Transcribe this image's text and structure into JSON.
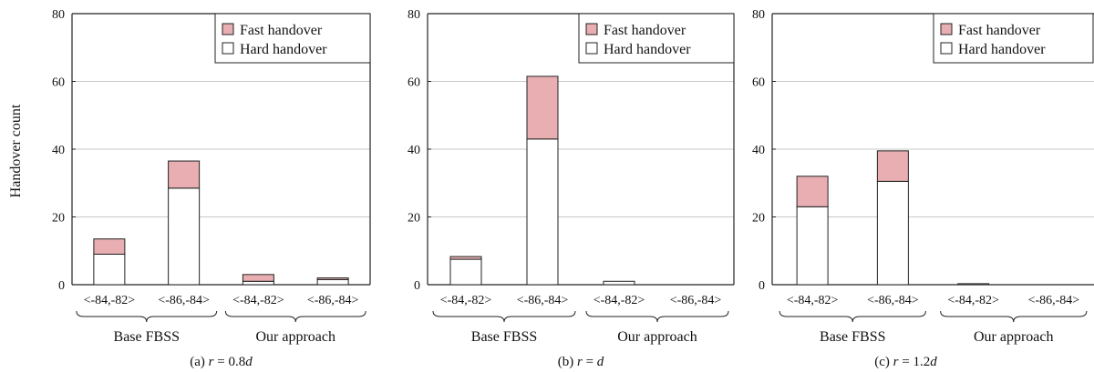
{
  "ylabel": "Handover count",
  "colors": {
    "fast": "#e8aeb1",
    "hard": "#ffffff",
    "grid": "#c8c8c8",
    "axis": "#222222"
  },
  "chart_data": [
    {
      "type": "bar",
      "stacked": true,
      "caption": "(a) r = 0.8d",
      "caption_prefix": "(a) ",
      "caption_var": "r",
      "caption_eq": " = 0.8",
      "caption_tail": "d",
      "ylim": [
        0,
        80
      ],
      "yticks": [
        0,
        20,
        40,
        60,
        80
      ],
      "categories": [
        "<-84,-82>",
        "<-86,-84>",
        "<-84,-82>",
        "<-86,-84>"
      ],
      "groups": [
        {
          "label": "Base FBSS",
          "span": [
            0,
            1
          ]
        },
        {
          "label": "Our approach",
          "span": [
            2,
            3
          ]
        }
      ],
      "legend": {
        "position": "top-right",
        "entries": [
          "Fast handover",
          "Hard handover"
        ]
      },
      "series": [
        {
          "name": "Hard handover",
          "values": [
            9,
            28.5,
            1,
            1.5
          ]
        },
        {
          "name": "Fast handover",
          "values": [
            4.5,
            8,
            2,
            0.5
          ]
        }
      ]
    },
    {
      "type": "bar",
      "stacked": true,
      "caption": "(b) r = d",
      "caption_prefix": "(b) ",
      "caption_var": "r",
      "caption_eq": " = ",
      "caption_tail": "d",
      "ylim": [
        0,
        80
      ],
      "yticks": [
        0,
        20,
        40,
        60,
        80
      ],
      "categories": [
        "<-84,-82>",
        "<-86,-84>",
        "<-84,-82>",
        "<-86,-84>"
      ],
      "groups": [
        {
          "label": "Base FBSS",
          "span": [
            0,
            1
          ]
        },
        {
          "label": "Our approach",
          "span": [
            2,
            3
          ]
        }
      ],
      "legend": {
        "position": "top-right",
        "entries": [
          "Fast handover",
          "Hard handover"
        ]
      },
      "series": [
        {
          "name": "Hard handover",
          "values": [
            7.5,
            43,
            1,
            0
          ]
        },
        {
          "name": "Fast handover",
          "values": [
            0.8,
            18.5,
            0,
            0
          ]
        }
      ]
    },
    {
      "type": "bar",
      "stacked": true,
      "caption": "(c) r = 1.2d",
      "caption_prefix": "(c) ",
      "caption_var": "r",
      "caption_eq": " = 1.2",
      "caption_tail": "d",
      "ylim": [
        0,
        80
      ],
      "yticks": [
        0,
        20,
        40,
        60,
        80
      ],
      "categories": [
        "<-84,-82>",
        "<-86,-84>",
        "<-84,-82>",
        "<-86,-84>"
      ],
      "groups": [
        {
          "label": "Base FBSS",
          "span": [
            0,
            1
          ]
        },
        {
          "label": "Our approach",
          "span": [
            2,
            3
          ]
        }
      ],
      "legend": {
        "position": "top-right",
        "entries": [
          "Fast handover",
          "Hard handover"
        ]
      },
      "series": [
        {
          "name": "Hard handover",
          "values": [
            23,
            30.5,
            0.3,
            0
          ]
        },
        {
          "name": "Fast handover",
          "values": [
            9,
            9,
            0,
            0
          ]
        }
      ]
    }
  ]
}
